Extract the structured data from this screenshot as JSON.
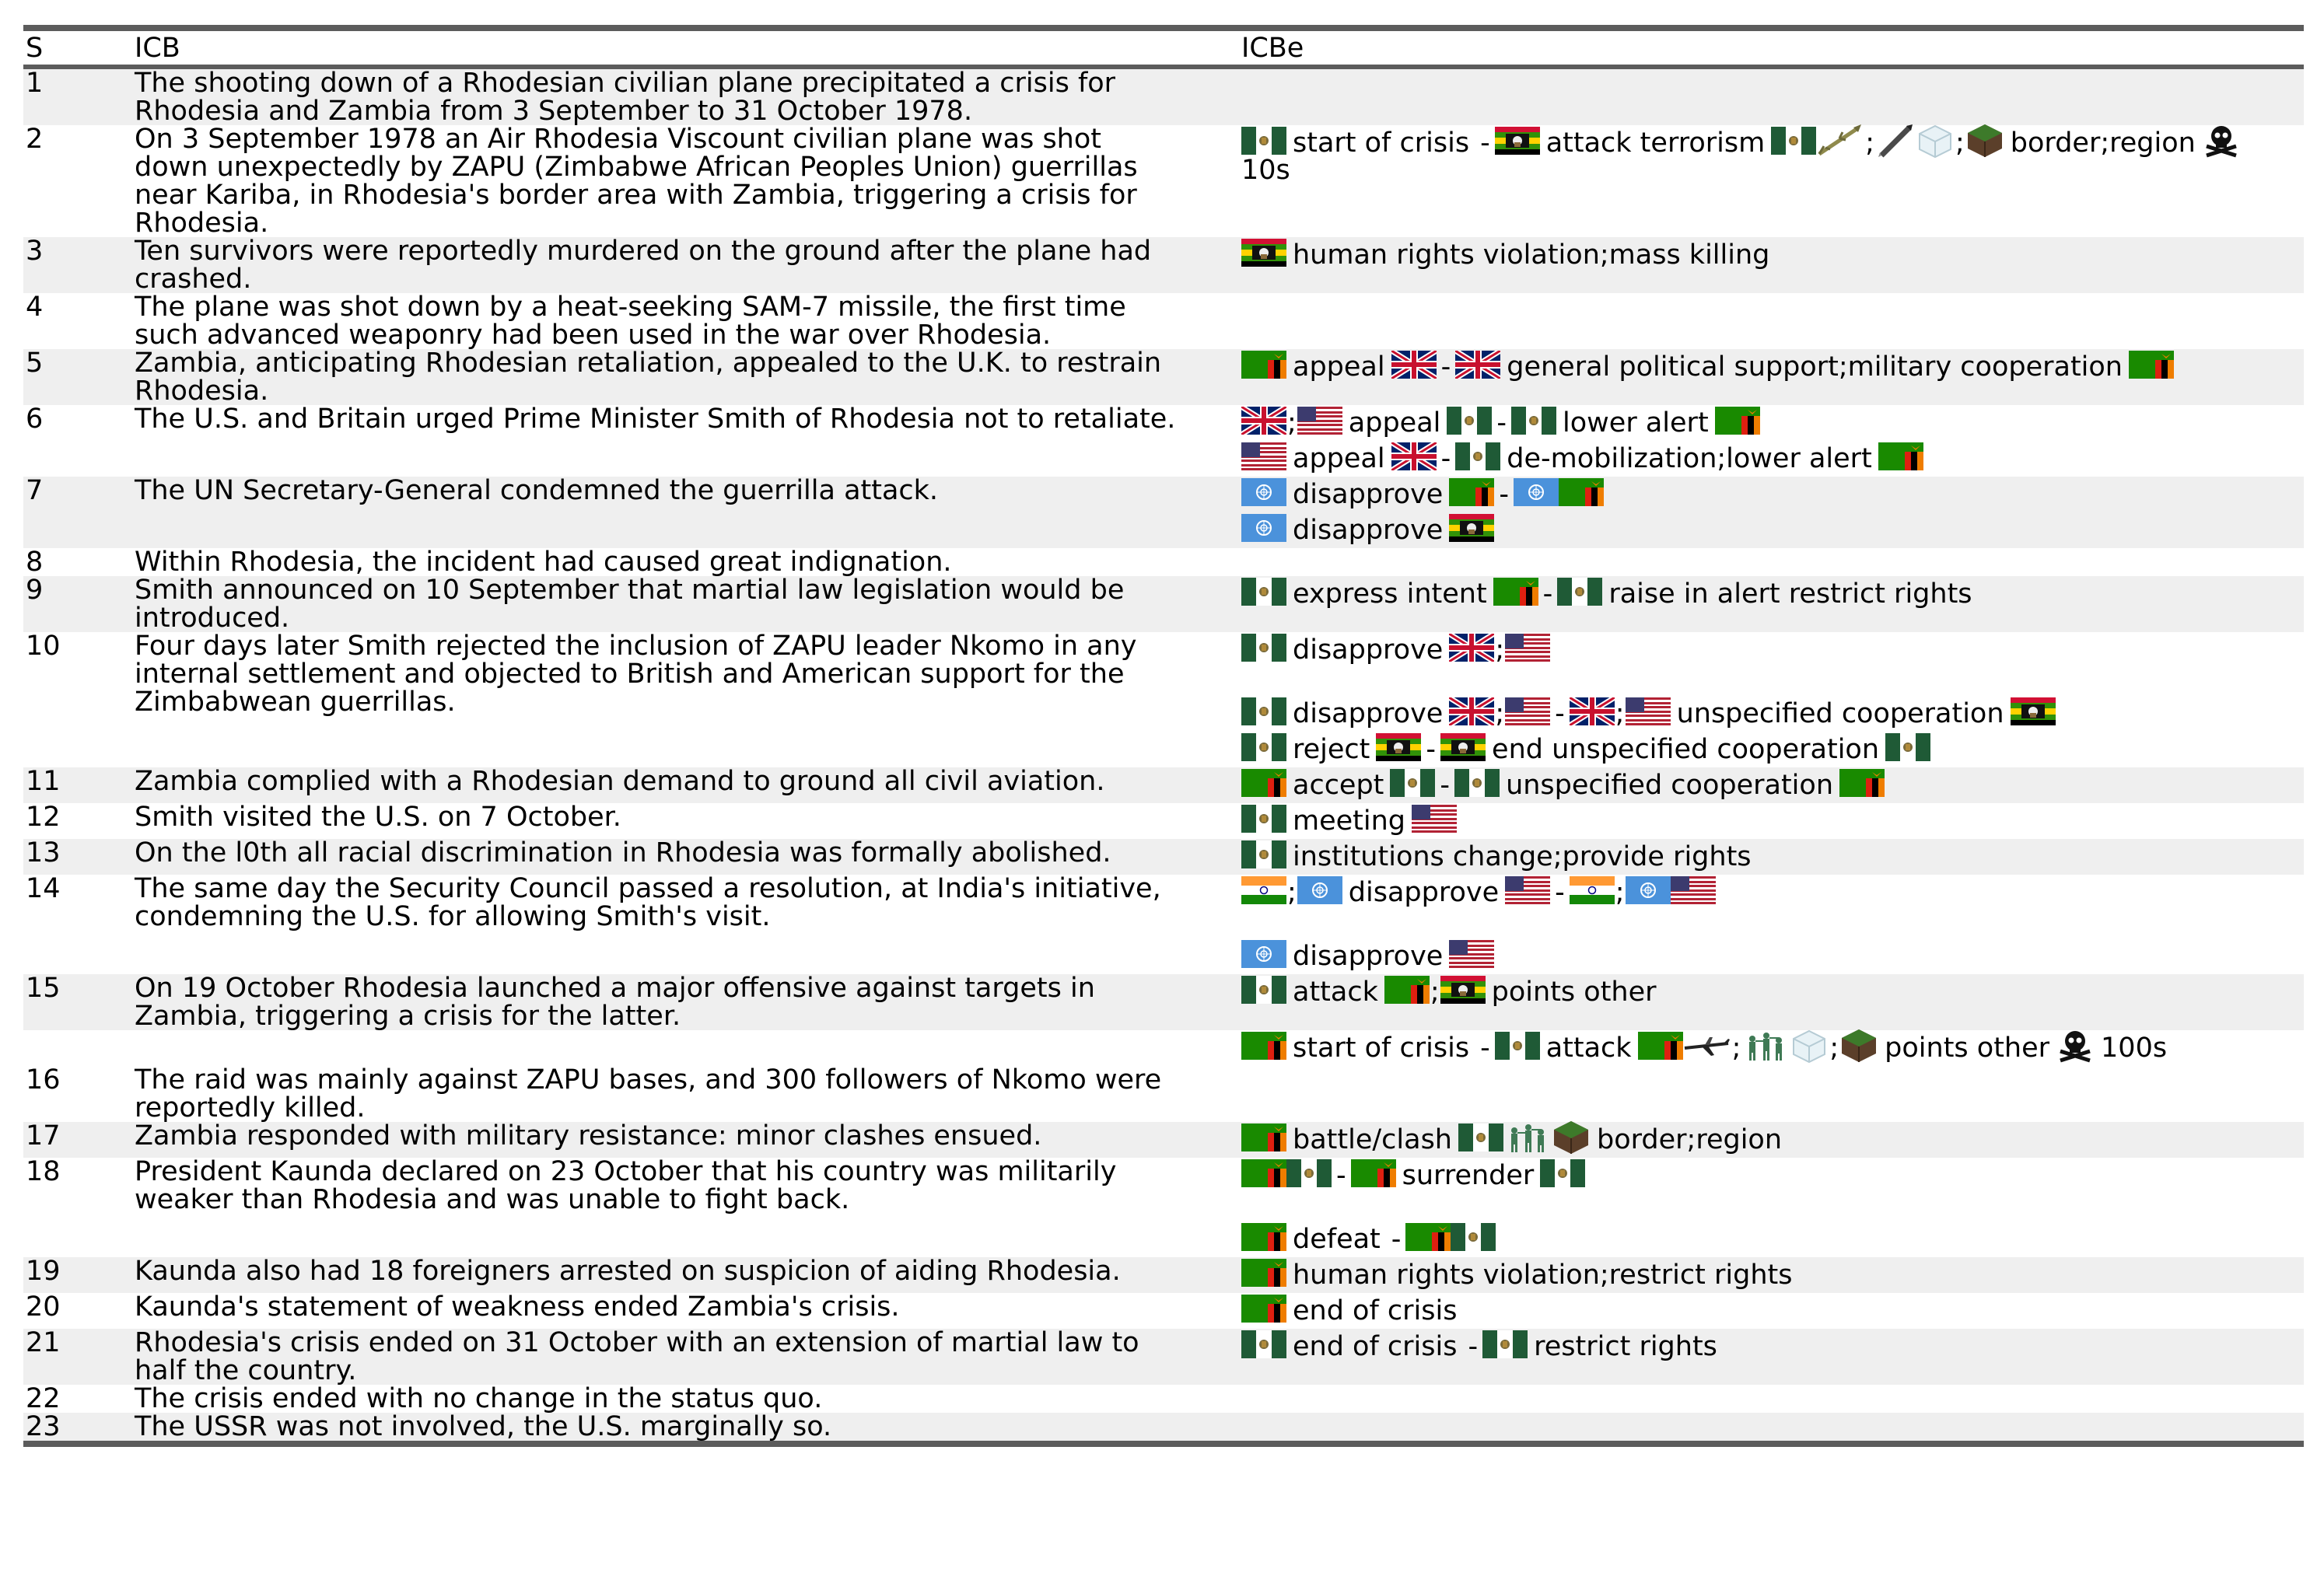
{
  "header": {
    "s": "S",
    "icb": "ICB",
    "icbe": "ICBe"
  },
  "rows": [
    {
      "s": "1",
      "shade": true,
      "icb": "The shooting down of a Rhodesian civilian plane precipitated a crisis for\nRhodesia and Zambia from 3 September to 31 October 1978.",
      "icbe": []
    },
    {
      "s": "2",
      "shade": false,
      "icb": "On 3 September 1978 an Air Rhodesia Viscount civilian plane was shot\ndown unexpectedly by ZAPU (Zimbabwe African Peoples Union) guerrillas\nnear Kariba, in Rhodesia's border area with Zambia, triggering a crisis for\nRhodesia.",
      "icbe": [
        {
          "items": [
            {
              "t": "icon",
              "n": "rhodesia"
            },
            {
              "t": "text",
              "v": "start of crisis"
            },
            {
              "t": "sep",
              "v": "-"
            },
            {
              "t": "icon",
              "n": "zapu"
            },
            {
              "t": "text",
              "v": "attack terrorism"
            },
            {
              "t": "icon",
              "n": "rhodesia"
            },
            {
              "t": "icon",
              "n": "missile"
            },
            {
              "t": "sep",
              "v": ";"
            },
            {
              "t": "icon",
              "n": "rocket"
            },
            {
              "t": "icon",
              "n": "cube"
            },
            {
              "t": "sep",
              "v": ";"
            },
            {
              "t": "icon",
              "n": "terrain"
            },
            {
              "t": "text",
              "v": "border;region"
            },
            {
              "t": "icon",
              "n": "skull"
            }
          ]
        },
        {
          "items": [
            {
              "t": "text",
              "v": "10s"
            }
          ],
          "continuation": true
        }
      ]
    },
    {
      "s": "3",
      "shade": true,
      "icb": "Ten survivors were reportedly murdered on the ground after the plane had\ncrashed.",
      "icbe": [
        {
          "items": [
            {
              "t": "icon",
              "n": "zapu"
            },
            {
              "t": "text",
              "v": "human rights violation;mass killing"
            }
          ]
        }
      ]
    },
    {
      "s": "4",
      "shade": false,
      "icb": "The plane was shot down by a heat-seeking SAM-7 missile, the first time\nsuch advanced weaponry had been used in the war over Rhodesia.",
      "icbe": []
    },
    {
      "s": "5",
      "shade": true,
      "icb": "Zambia, anticipating Rhodesian retaliation, appealed to the U.K. to restrain\nRhodesia.",
      "icbe": [
        {
          "items": [
            {
              "t": "icon",
              "n": "zambia"
            },
            {
              "t": "text",
              "v": "appeal"
            },
            {
              "t": "icon",
              "n": "uk"
            },
            {
              "t": "sep",
              "v": "-"
            },
            {
              "t": "icon",
              "n": "uk"
            },
            {
              "t": "text",
              "v": "general political support;military cooperation"
            },
            {
              "t": "icon",
              "n": "zambia"
            }
          ]
        }
      ]
    },
    {
      "s": "6",
      "shade": false,
      "icb": "The U.S. and Britain urged Prime Minister Smith of Rhodesia not to retaliate.",
      "icbe": [
        {
          "items": [
            {
              "t": "icon",
              "n": "uk"
            },
            {
              "t": "sep",
              "v": ";"
            },
            {
              "t": "icon",
              "n": "usa"
            },
            {
              "t": "text",
              "v": "appeal"
            },
            {
              "t": "icon",
              "n": "rhodesia"
            },
            {
              "t": "sep",
              "v": "-"
            },
            {
              "t": "icon",
              "n": "rhodesia"
            },
            {
              "t": "text",
              "v": "lower alert"
            },
            {
              "t": "icon",
              "n": "zambia"
            }
          ]
        },
        {
          "items": [
            {
              "t": "icon",
              "n": "usa"
            },
            {
              "t": "text",
              "v": "appeal"
            },
            {
              "t": "icon",
              "n": "uk"
            },
            {
              "t": "sep",
              "v": "-"
            },
            {
              "t": "icon",
              "n": "rhodesia"
            },
            {
              "t": "text",
              "v": "de-mobilization;lower alert"
            },
            {
              "t": "icon",
              "n": "zambia"
            }
          ]
        }
      ]
    },
    {
      "s": "7",
      "shade": true,
      "icb": "The UN Secretary-General condemned the guerrilla attack.",
      "icbe": [
        {
          "items": [
            {
              "t": "icon",
              "n": "un"
            },
            {
              "t": "text",
              "v": "disapprove"
            },
            {
              "t": "icon",
              "n": "zambia"
            },
            {
              "t": "sep",
              "v": "-"
            },
            {
              "t": "icon",
              "n": "un"
            },
            {
              "t": "icon",
              "n": "zambia"
            }
          ]
        },
        {
          "items": [
            {
              "t": "icon",
              "n": "un"
            },
            {
              "t": "text",
              "v": "disapprove"
            },
            {
              "t": "icon",
              "n": "zapu"
            }
          ]
        }
      ]
    },
    {
      "s": "8",
      "shade": false,
      "icb": "Within Rhodesia, the incident had caused great indignation.",
      "icbe": []
    },
    {
      "s": "9",
      "shade": true,
      "icb": "Smith announced on 10 September that martial law legislation would be\nintroduced.",
      "icbe": [
        {
          "items": [
            {
              "t": "icon",
              "n": "rhodesia"
            },
            {
              "t": "text",
              "v": "express intent"
            },
            {
              "t": "icon",
              "n": "zambia"
            },
            {
              "t": "sep",
              "v": "-"
            },
            {
              "t": "icon",
              "n": "rhodesia"
            },
            {
              "t": "text",
              "v": "raise in alert restrict rights"
            }
          ]
        }
      ]
    },
    {
      "s": "10",
      "shade": false,
      "icb": "Four days later Smith rejected the inclusion of ZAPU leader Nkomo in any\ninternal settlement and objected to British and American support for the\nZimbabwean guerrillas.",
      "icbe": [
        {
          "items": [
            {
              "t": "icon",
              "n": "rhodesia"
            },
            {
              "t": "text",
              "v": "disapprove"
            },
            {
              "t": "icon",
              "n": "uk"
            },
            {
              "t": "sep",
              "v": ";"
            },
            {
              "t": "icon",
              "n": "usa"
            }
          ]
        },
        {
          "items": [],
          "spacer": true
        },
        {
          "items": [
            {
              "t": "icon",
              "n": "rhodesia"
            },
            {
              "t": "text",
              "v": "disapprove"
            },
            {
              "t": "icon",
              "n": "uk"
            },
            {
              "t": "sep",
              "v": ";"
            },
            {
              "t": "icon",
              "n": "usa"
            },
            {
              "t": "sep",
              "v": "-"
            },
            {
              "t": "icon",
              "n": "uk"
            },
            {
              "t": "sep",
              "v": ";"
            },
            {
              "t": "icon",
              "n": "usa"
            },
            {
              "t": "text",
              "v": "unspecified cooperation"
            },
            {
              "t": "icon",
              "n": "zapu"
            }
          ]
        },
        {
          "items": [
            {
              "t": "icon",
              "n": "rhodesia"
            },
            {
              "t": "text",
              "v": "reject"
            },
            {
              "t": "icon",
              "n": "zapu"
            },
            {
              "t": "sep",
              "v": "-"
            },
            {
              "t": "icon",
              "n": "zapu"
            },
            {
              "t": "text",
              "v": "end unspecified cooperation"
            },
            {
              "t": "icon",
              "n": "rhodesia"
            }
          ]
        }
      ]
    },
    {
      "s": "11",
      "shade": true,
      "icb": "Zambia complied with a Rhodesian demand to ground all civil aviation.",
      "icbe": [
        {
          "items": [
            {
              "t": "icon",
              "n": "zambia"
            },
            {
              "t": "text",
              "v": "accept"
            },
            {
              "t": "icon",
              "n": "rhodesia"
            },
            {
              "t": "sep",
              "v": "-"
            },
            {
              "t": "icon",
              "n": "rhodesia"
            },
            {
              "t": "text",
              "v": "unspecified cooperation"
            },
            {
              "t": "icon",
              "n": "zambia"
            }
          ]
        }
      ]
    },
    {
      "s": "12",
      "shade": false,
      "icb": "Smith visited the U.S. on 7 October.",
      "icbe": [
        {
          "items": [
            {
              "t": "icon",
              "n": "rhodesia"
            },
            {
              "t": "text",
              "v": "meeting"
            },
            {
              "t": "icon",
              "n": "usa"
            }
          ]
        }
      ]
    },
    {
      "s": "13",
      "shade": true,
      "icb": "On the l0th all racial discrimination in Rhodesia was formally abolished.",
      "icbe": [
        {
          "items": [
            {
              "t": "icon",
              "n": "rhodesia"
            },
            {
              "t": "text",
              "v": "institutions change;provide rights"
            }
          ]
        }
      ]
    },
    {
      "s": "14",
      "shade": false,
      "icb": "The same day the Security Council passed a resolution, at India's initiative,\ncondemning the U.S. for allowing Smith's visit.",
      "icbe": [
        {
          "items": [
            {
              "t": "icon",
              "n": "india"
            },
            {
              "t": "sep",
              "v": ";"
            },
            {
              "t": "icon",
              "n": "un"
            },
            {
              "t": "text",
              "v": "disapprove"
            },
            {
              "t": "icon",
              "n": "usa"
            },
            {
              "t": "sep",
              "v": "-"
            },
            {
              "t": "icon",
              "n": "india"
            },
            {
              "t": "sep",
              "v": ";"
            },
            {
              "t": "icon",
              "n": "un"
            },
            {
              "t": "icon",
              "n": "usa"
            }
          ]
        },
        {
          "items": [],
          "spacer": true
        },
        {
          "items": [
            {
              "t": "icon",
              "n": "un"
            },
            {
              "t": "text",
              "v": "disapprove"
            },
            {
              "t": "icon",
              "n": "usa"
            }
          ]
        }
      ]
    },
    {
      "s": "15",
      "shade": true,
      "icb": "On 19 October Rhodesia launched a major offensive against targets in\nZambia, triggering a crisis for the latter.",
      "icbe": [
        {
          "items": [
            {
              "t": "icon",
              "n": "rhodesia"
            },
            {
              "t": "text",
              "v": "attack"
            },
            {
              "t": "icon",
              "n": "zambia"
            },
            {
              "t": "sep",
              "v": ";"
            },
            {
              "t": "icon",
              "n": "zapu"
            },
            {
              "t": "text",
              "v": "points other"
            }
          ]
        }
      ]
    },
    {
      "s": "",
      "shade": false,
      "icb": "",
      "icbe": [
        {
          "items": [
            {
              "t": "icon",
              "n": "zambia"
            },
            {
              "t": "text",
              "v": "start of crisis"
            },
            {
              "t": "sep",
              "v": "-"
            },
            {
              "t": "icon",
              "n": "rhodesia"
            },
            {
              "t": "text",
              "v": "attack"
            },
            {
              "t": "icon",
              "n": "zambia"
            },
            {
              "t": "icon",
              "n": "plane"
            },
            {
              "t": "sep",
              "v": ";"
            },
            {
              "t": "icon",
              "n": "soldiers"
            },
            {
              "t": "icon",
              "n": "cube"
            },
            {
              "t": "sep",
              "v": ";"
            },
            {
              "t": "icon",
              "n": "terrain"
            },
            {
              "t": "text",
              "v": "points other"
            },
            {
              "t": "icon",
              "n": "skull"
            },
            {
              "t": "text",
              "v": "100s"
            }
          ]
        }
      ]
    },
    {
      "s": "16",
      "shade": false,
      "icb": "The raid was mainly against ZAPU bases, and 300 followers of Nkomo were\nreportedly killed.",
      "icbe": []
    },
    {
      "s": "17",
      "shade": true,
      "icb": "Zambia responded with military resistance: minor clashes ensued.",
      "icbe": [
        {
          "items": [
            {
              "t": "icon",
              "n": "zambia"
            },
            {
              "t": "text",
              "v": "battle/clash"
            },
            {
              "t": "icon",
              "n": "rhodesia"
            },
            {
              "t": "icon",
              "n": "soldiers"
            },
            {
              "t": "icon",
              "n": "terrain"
            },
            {
              "t": "text",
              "v": "border;region"
            }
          ]
        }
      ]
    },
    {
      "s": "18",
      "shade": false,
      "icb": "President Kaunda declared on 23 October that his country was militarily\nweaker than Rhodesia and was unable to fight back.",
      "icbe": [
        {
          "items": [
            {
              "t": "icon",
              "n": "zambia"
            },
            {
              "t": "icon",
              "n": "rhodesia"
            },
            {
              "t": "sep",
              "v": "-"
            },
            {
              "t": "icon",
              "n": "zambia"
            },
            {
              "t": "text",
              "v": "surrender"
            },
            {
              "t": "icon",
              "n": "rhodesia"
            }
          ]
        },
        {
          "items": [],
          "spacer": true
        },
        {
          "items": [
            {
              "t": "icon",
              "n": "zambia"
            },
            {
              "t": "text",
              "v": "defeat"
            },
            {
              "t": "sep",
              "v": "-"
            },
            {
              "t": "icon",
              "n": "zambia"
            },
            {
              "t": "icon",
              "n": "rhodesia"
            }
          ]
        }
      ]
    },
    {
      "s": "19",
      "shade": true,
      "icb": "Kaunda also had 18 foreigners arrested on suspicion of aiding Rhodesia.",
      "icbe": [
        {
          "items": [
            {
              "t": "icon",
              "n": "zambia"
            },
            {
              "t": "text",
              "v": "human rights violation;restrict rights"
            }
          ]
        }
      ]
    },
    {
      "s": "20",
      "shade": false,
      "icb": "Kaunda's statement of weakness ended Zambia's crisis.",
      "icbe": [
        {
          "items": [
            {
              "t": "icon",
              "n": "zambia"
            },
            {
              "t": "text",
              "v": "end of crisis"
            }
          ]
        }
      ]
    },
    {
      "s": "21",
      "shade": true,
      "icb": "Rhodesia's crisis ended on 31 October with an extension of martial law to\nhalf the country.",
      "icbe": [
        {
          "items": [
            {
              "t": "icon",
              "n": "rhodesia"
            },
            {
              "t": "text",
              "v": "end of crisis"
            },
            {
              "t": "sep",
              "v": "-"
            },
            {
              "t": "icon",
              "n": "rhodesia"
            },
            {
              "t": "text",
              "v": "restrict rights"
            }
          ]
        }
      ]
    },
    {
      "s": "22",
      "shade": false,
      "icb": "The crisis ended with no change in the status quo.",
      "icbe": []
    },
    {
      "s": "23",
      "shade": true,
      "icb": "The USSR was not involved, the U.S. marginally so.",
      "icbe": []
    }
  ],
  "colors": {
    "rule": "#5c5c5c",
    "shade": "#efefef",
    "rhodesia_green": "#1f5a36",
    "zambia_green": "#198a00",
    "un_blue": "#4b92db",
    "uk_blue": "#012169",
    "uk_red": "#c8102e",
    "usa_red": "#b22234",
    "usa_blue": "#3c3b6e",
    "india_saffron": "#ff9933",
    "india_green": "#138808"
  }
}
